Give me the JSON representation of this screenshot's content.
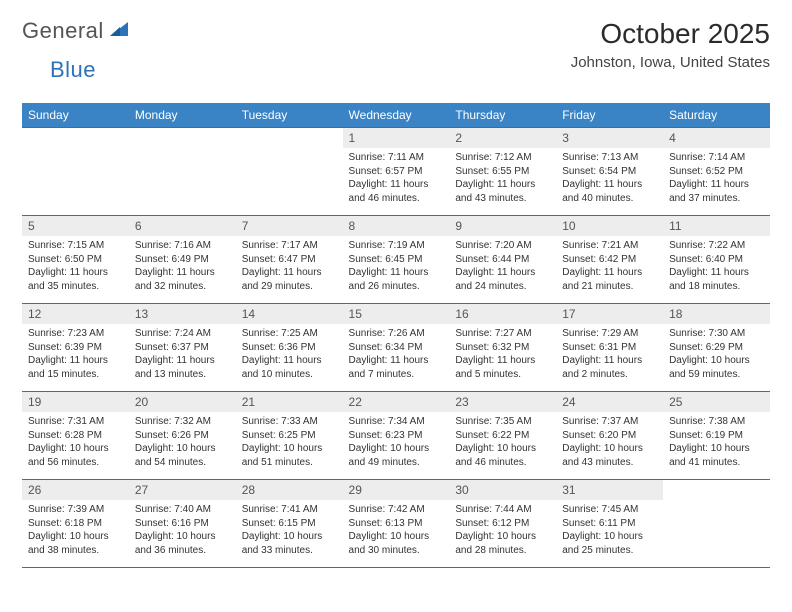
{
  "brand": {
    "part1": "General",
    "part2": "Blue"
  },
  "title": "October 2025",
  "location": "Johnston, Iowa, United States",
  "colors": {
    "header_bg": "#3a83c4",
    "header_fg": "#ffffff",
    "border": "#3a6fa0",
    "daynum_bg": "#ededed",
    "logo_gray": "#545454",
    "logo_blue": "#2d73b8"
  },
  "day_headers": [
    "Sunday",
    "Monday",
    "Tuesday",
    "Wednesday",
    "Thursday",
    "Friday",
    "Saturday"
  ],
  "weeks": [
    [
      null,
      null,
      null,
      {
        "n": "1",
        "sr": "7:11 AM",
        "ss": "6:57 PM",
        "dl": "11 hours and 46 minutes."
      },
      {
        "n": "2",
        "sr": "7:12 AM",
        "ss": "6:55 PM",
        "dl": "11 hours and 43 minutes."
      },
      {
        "n": "3",
        "sr": "7:13 AM",
        "ss": "6:54 PM",
        "dl": "11 hours and 40 minutes."
      },
      {
        "n": "4",
        "sr": "7:14 AM",
        "ss": "6:52 PM",
        "dl": "11 hours and 37 minutes."
      }
    ],
    [
      {
        "n": "5",
        "sr": "7:15 AM",
        "ss": "6:50 PM",
        "dl": "11 hours and 35 minutes."
      },
      {
        "n": "6",
        "sr": "7:16 AM",
        "ss": "6:49 PM",
        "dl": "11 hours and 32 minutes."
      },
      {
        "n": "7",
        "sr": "7:17 AM",
        "ss": "6:47 PM",
        "dl": "11 hours and 29 minutes."
      },
      {
        "n": "8",
        "sr": "7:19 AM",
        "ss": "6:45 PM",
        "dl": "11 hours and 26 minutes."
      },
      {
        "n": "9",
        "sr": "7:20 AM",
        "ss": "6:44 PM",
        "dl": "11 hours and 24 minutes."
      },
      {
        "n": "10",
        "sr": "7:21 AM",
        "ss": "6:42 PM",
        "dl": "11 hours and 21 minutes."
      },
      {
        "n": "11",
        "sr": "7:22 AM",
        "ss": "6:40 PM",
        "dl": "11 hours and 18 minutes."
      }
    ],
    [
      {
        "n": "12",
        "sr": "7:23 AM",
        "ss": "6:39 PM",
        "dl": "11 hours and 15 minutes."
      },
      {
        "n": "13",
        "sr": "7:24 AM",
        "ss": "6:37 PM",
        "dl": "11 hours and 13 minutes."
      },
      {
        "n": "14",
        "sr": "7:25 AM",
        "ss": "6:36 PM",
        "dl": "11 hours and 10 minutes."
      },
      {
        "n": "15",
        "sr": "7:26 AM",
        "ss": "6:34 PM",
        "dl": "11 hours and 7 minutes."
      },
      {
        "n": "16",
        "sr": "7:27 AM",
        "ss": "6:32 PM",
        "dl": "11 hours and 5 minutes."
      },
      {
        "n": "17",
        "sr": "7:29 AM",
        "ss": "6:31 PM",
        "dl": "11 hours and 2 minutes."
      },
      {
        "n": "18",
        "sr": "7:30 AM",
        "ss": "6:29 PM",
        "dl": "10 hours and 59 minutes."
      }
    ],
    [
      {
        "n": "19",
        "sr": "7:31 AM",
        "ss": "6:28 PM",
        "dl": "10 hours and 56 minutes."
      },
      {
        "n": "20",
        "sr": "7:32 AM",
        "ss": "6:26 PM",
        "dl": "10 hours and 54 minutes."
      },
      {
        "n": "21",
        "sr": "7:33 AM",
        "ss": "6:25 PM",
        "dl": "10 hours and 51 minutes."
      },
      {
        "n": "22",
        "sr": "7:34 AM",
        "ss": "6:23 PM",
        "dl": "10 hours and 49 minutes."
      },
      {
        "n": "23",
        "sr": "7:35 AM",
        "ss": "6:22 PM",
        "dl": "10 hours and 46 minutes."
      },
      {
        "n": "24",
        "sr": "7:37 AM",
        "ss": "6:20 PM",
        "dl": "10 hours and 43 minutes."
      },
      {
        "n": "25",
        "sr": "7:38 AM",
        "ss": "6:19 PM",
        "dl": "10 hours and 41 minutes."
      }
    ],
    [
      {
        "n": "26",
        "sr": "7:39 AM",
        "ss": "6:18 PM",
        "dl": "10 hours and 38 minutes."
      },
      {
        "n": "27",
        "sr": "7:40 AM",
        "ss": "6:16 PM",
        "dl": "10 hours and 36 minutes."
      },
      {
        "n": "28",
        "sr": "7:41 AM",
        "ss": "6:15 PM",
        "dl": "10 hours and 33 minutes."
      },
      {
        "n": "29",
        "sr": "7:42 AM",
        "ss": "6:13 PM",
        "dl": "10 hours and 30 minutes."
      },
      {
        "n": "30",
        "sr": "7:44 AM",
        "ss": "6:12 PM",
        "dl": "10 hours and 28 minutes."
      },
      {
        "n": "31",
        "sr": "7:45 AM",
        "ss": "6:11 PM",
        "dl": "10 hours and 25 minutes."
      },
      null
    ]
  ],
  "labels": {
    "sunrise": "Sunrise: ",
    "sunset": "Sunset: ",
    "daylight": "Daylight: "
  }
}
